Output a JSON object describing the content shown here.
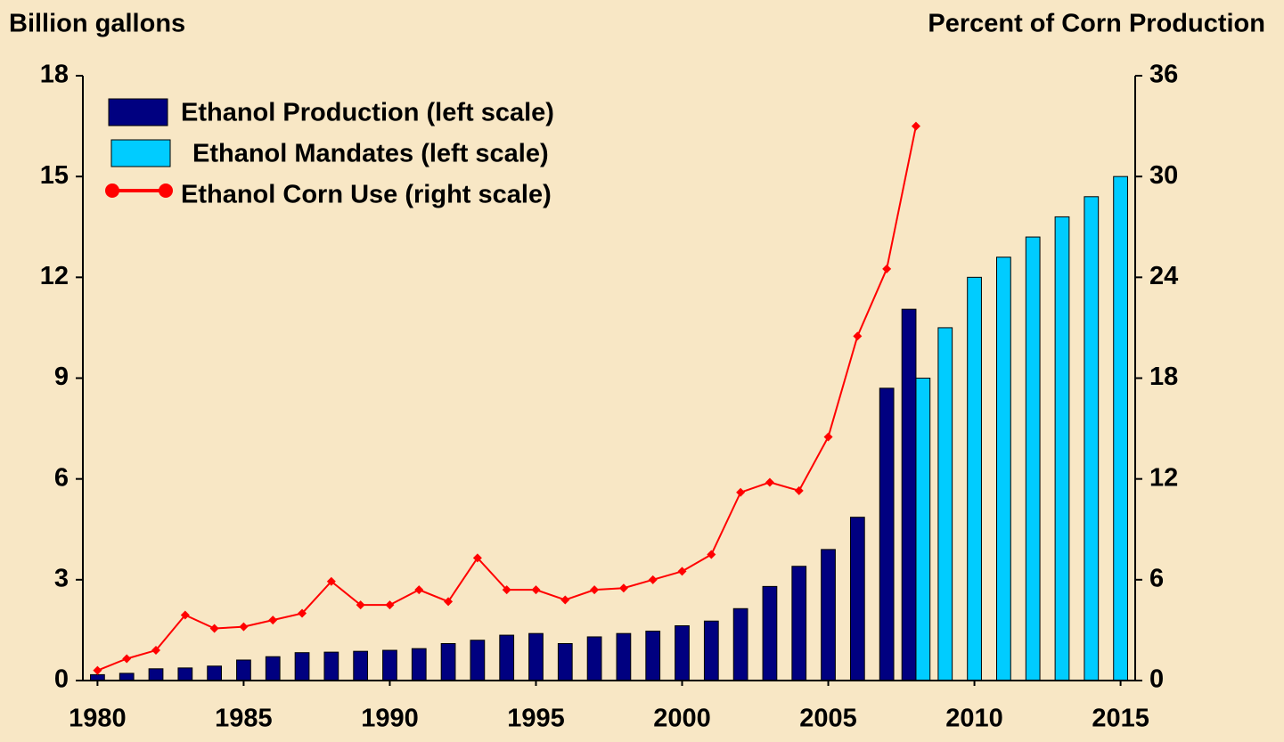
{
  "chart_data": {
    "type": "bar-line",
    "y_label": "Billion gallons",
    "y2_label": "Percent of Corn Production",
    "x": [
      1980,
      1981,
      1982,
      1983,
      1984,
      1985,
      1986,
      1987,
      1988,
      1989,
      1990,
      1991,
      1992,
      1993,
      1994,
      1995,
      1996,
      1997,
      1998,
      1999,
      2000,
      2001,
      2002,
      2003,
      2004,
      2005,
      2006,
      2007,
      2008,
      2009,
      2010,
      2011,
      2012,
      2013,
      2014,
      2015
    ],
    "xlim": [
      1979.5,
      2015.5
    ],
    "xticks": [
      1980,
      1985,
      1990,
      1995,
      2000,
      2005,
      2010,
      2015
    ],
    "ylim": [
      0,
      18
    ],
    "yticks": [
      0,
      3,
      6,
      9,
      12,
      15,
      18
    ],
    "y2lim": [
      0,
      36
    ],
    "y2ticks": [
      0,
      6,
      12,
      18,
      24,
      30,
      36
    ],
    "series": [
      {
        "name": "Ethanol Production (left scale)",
        "color": "#000080",
        "kind": "bar",
        "values": [
          0.175,
          0.215,
          0.35,
          0.375,
          0.43,
          0.61,
          0.71,
          0.83,
          0.845,
          0.87,
          0.9,
          0.95,
          1.1,
          1.2,
          1.35,
          1.4,
          1.1,
          1.3,
          1.4,
          1.47,
          1.63,
          1.77,
          2.14,
          2.8,
          3.4,
          3.9,
          4.86,
          8.7,
          11.05,
          null,
          null,
          null,
          null,
          null,
          null,
          null
        ]
      },
      {
        "name": "Ethanol Mandates (left scale)",
        "color": "#00ccff",
        "kind": "bar",
        "values": [
          null,
          null,
          null,
          null,
          null,
          null,
          null,
          null,
          null,
          null,
          null,
          null,
          null,
          null,
          null,
          null,
          null,
          null,
          null,
          null,
          null,
          null,
          null,
          null,
          null,
          null,
          null,
          null,
          9.0,
          10.5,
          12.0,
          12.6,
          13.2,
          13.8,
          14.4,
          15.0
        ]
      },
      {
        "name": "Ethanol Corn Use (right scale)",
        "color": "#ff0000",
        "kind": "line",
        "axis": "y2",
        "values": [
          0.6,
          1.3,
          1.8,
          3.9,
          3.1,
          3.2,
          3.6,
          4.0,
          5.9,
          4.5,
          4.5,
          5.4,
          4.7,
          7.3,
          5.4,
          5.4,
          4.8,
          5.4,
          5.5,
          6.0,
          6.5,
          7.5,
          11.2,
          11.8,
          11.3,
          14.5,
          20.5,
          24.5,
          33.0,
          null,
          null,
          null,
          null,
          null,
          null,
          null
        ]
      }
    ]
  }
}
